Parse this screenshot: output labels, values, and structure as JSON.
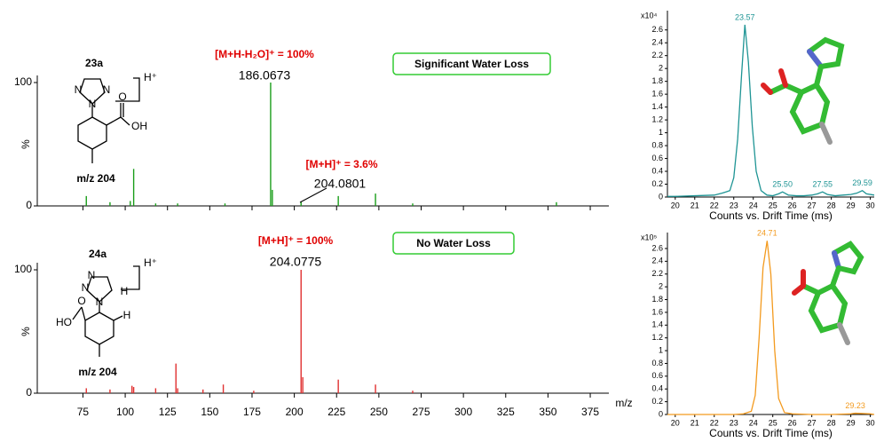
{
  "chart_data": [
    {
      "type": "bar",
      "x": [
        77,
        91,
        103,
        105,
        118,
        131,
        159,
        186,
        187,
        204,
        226,
        248,
        270,
        355
      ],
      "values": [
        8,
        3,
        4,
        30,
        2,
        2,
        2,
        100,
        13,
        3.6,
        8,
        10,
        2,
        3
      ],
      "color": "#1a9e1a",
      "xlim": [
        48,
        386
      ],
      "ylim": [
        0,
        100
      ],
      "yticks": [
        0,
        100
      ],
      "ylabel": "%",
      "annotations": [
        "[M+H-H₂O]⁺ = 100%",
        "186.0673",
        "[M+H]⁺ = 3.6%",
        "204.0801"
      ],
      "note": "Significant Water Loss"
    },
    {
      "type": "bar",
      "x": [
        77,
        91,
        104,
        105,
        118,
        130,
        131,
        146,
        158,
        176,
        204,
        205,
        226,
        248,
        270
      ],
      "values": [
        4,
        3,
        6,
        5,
        4,
        24,
        4,
        3,
        7,
        2,
        100,
        13,
        11,
        7,
        2
      ],
      "color": "#e03030",
      "xlim": [
        48,
        386
      ],
      "ylim": [
        0,
        100
      ],
      "yticks": [
        0,
        100
      ],
      "ylabel": "%",
      "xticks": [
        75,
        100,
        125,
        150,
        175,
        200,
        225,
        250,
        275,
        300,
        325,
        350,
        375
      ],
      "xlabel": "m/z",
      "annotations": [
        "[M+H]⁺ = 100%",
        "204.0775"
      ],
      "note": "No Water Loss"
    },
    {
      "type": "line",
      "multiplier": "x10⁴",
      "xlabel": "Counts vs. Drift Time (ms)",
      "color": "#1e9494",
      "x": [
        19.6,
        20,
        21,
        22,
        22.4,
        22.6,
        22.8,
        23.0,
        23.2,
        23.4,
        23.57,
        23.75,
        23.95,
        24.15,
        24.4,
        24.7,
        25,
        25.3,
        25.5,
        25.8,
        26.2,
        26.6,
        27,
        27.3,
        27.55,
        27.8,
        28.2,
        28.6,
        29,
        29.3,
        29.59,
        29.8,
        30.2
      ],
      "values": [
        0.01,
        0.01,
        0.02,
        0.03,
        0.06,
        0.08,
        0.1,
        0.3,
        0.9,
        1.9,
        2.68,
        2.1,
        1.1,
        0.4,
        0.1,
        0.03,
        0.02,
        0.05,
        0.08,
        0.03,
        0.02,
        0.02,
        0.03,
        0.05,
        0.08,
        0.04,
        0.02,
        0.03,
        0.04,
        0.06,
        0.1,
        0.05,
        0.03
      ],
      "xlim": [
        19.6,
        30.2
      ],
      "xticks": [
        20,
        21,
        22,
        23,
        24,
        25,
        26,
        27,
        28,
        29,
        30
      ],
      "ylim": [
        0,
        2.9
      ],
      "yticks": [
        0,
        0.2,
        0.4,
        0.6,
        0.8,
        1,
        1.2,
        1.4,
        1.6,
        1.8,
        2,
        2.2,
        2.4,
        2.6
      ],
      "peak_labels": [
        {
          "value": 23.57,
          "label": "23.57"
        },
        {
          "value": 25.5,
          "label": "25.50"
        },
        {
          "value": 27.55,
          "label": "27.55"
        },
        {
          "value": 29.59,
          "label": "29.59"
        }
      ]
    },
    {
      "type": "line",
      "multiplier": "x10⁵",
      "xlabel": "Counts vs. Drift Time (ms)",
      "color": "#f39a1e",
      "x": [
        19.6,
        20,
        21,
        22,
        23,
        23.5,
        23.9,
        24.1,
        24.3,
        24.5,
        24.71,
        24.9,
        25.1,
        25.3,
        25.6,
        26,
        27,
        28,
        29,
        29.23,
        30,
        30.2
      ],
      "values": [
        0,
        0,
        0,
        0,
        0,
        0.01,
        0.05,
        0.3,
        1.2,
        2.3,
        2.72,
        2.2,
        1.0,
        0.25,
        0.03,
        0.01,
        0,
        0,
        0.01,
        0.02,
        0.01,
        0
      ],
      "xlim": [
        19.6,
        30.2
      ],
      "xticks": [
        20,
        21,
        22,
        23,
        24,
        25,
        26,
        27,
        28,
        29,
        30
      ],
      "ylim": [
        0,
        2.85
      ],
      "yticks": [
        0,
        0.2,
        0.4,
        0.6,
        0.8,
        1,
        1.2,
        1.4,
        1.6,
        1.8,
        2,
        2.2,
        2.4,
        2.6
      ],
      "peak_labels": [
        {
          "value": 24.71,
          "label": "24.71"
        },
        {
          "value": 29.23,
          "label": "29.23"
        }
      ]
    }
  ],
  "structures": [
    {
      "id": "23a",
      "charge": "H⁺",
      "atoms": [
        "N",
        "N",
        "N",
        "O",
        "OH"
      ],
      "mz": "m/z 204"
    },
    {
      "id": "24a",
      "charge": "H⁺",
      "atoms": [
        "N",
        "N",
        "N",
        "H",
        "H",
        "O",
        "HO"
      ],
      "mz": "m/z 204"
    }
  ]
}
